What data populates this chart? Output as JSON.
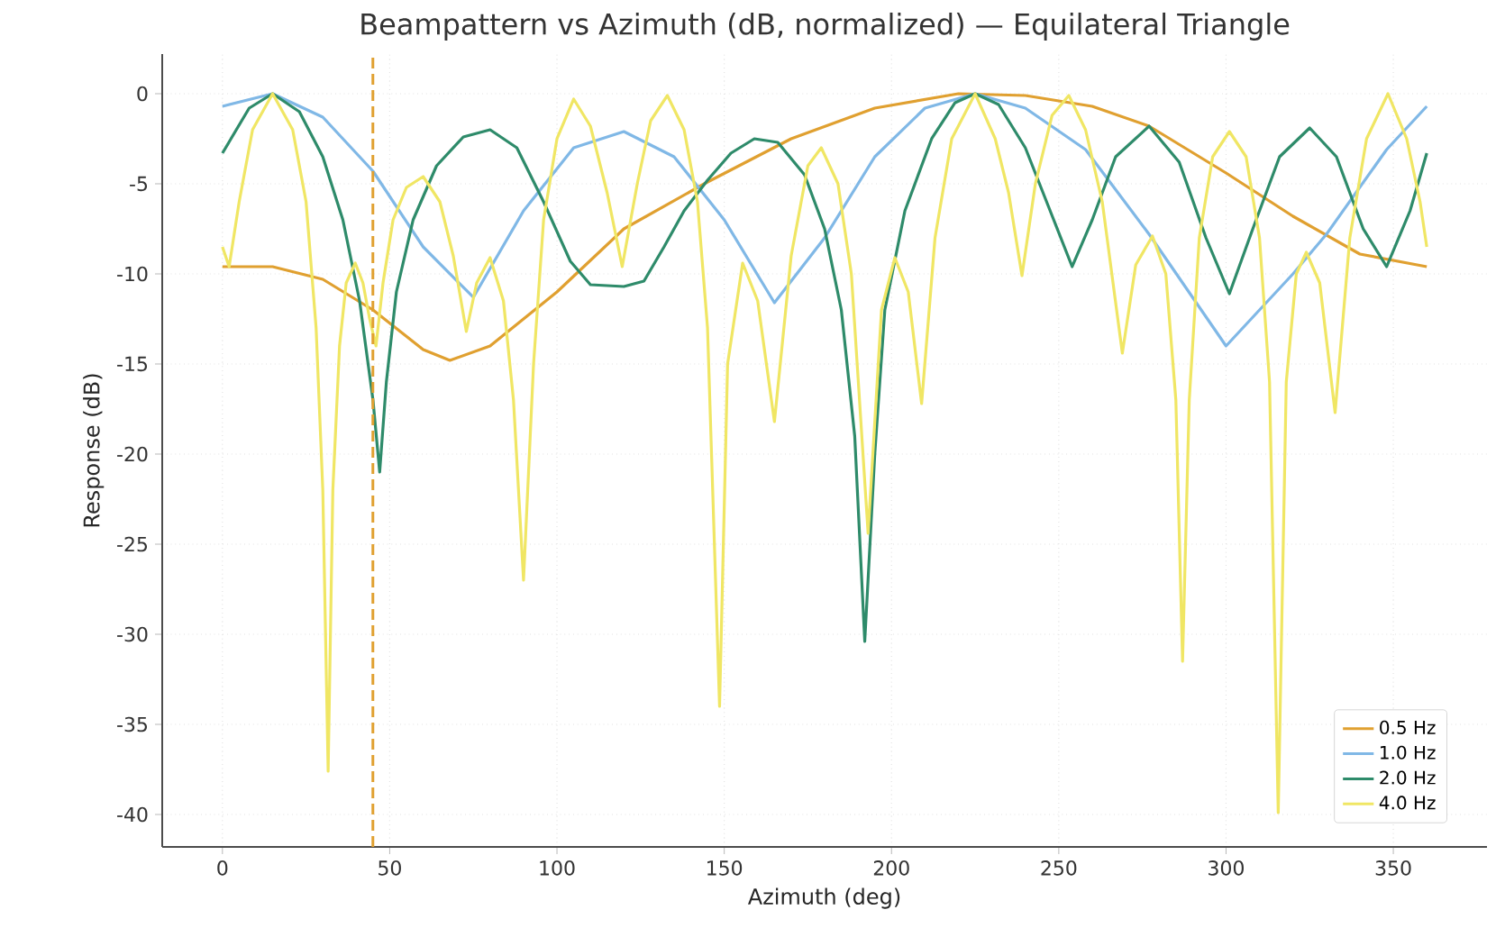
{
  "chart_data": {
    "type": "line",
    "title": "Beampattern vs Azimuth (dB, normalized) — Equilateral Triangle",
    "xlabel": "Azimuth (deg)",
    "ylabel": "Response (dB)",
    "xlim": [
      -18,
      378
    ],
    "ylim": [
      -41.8,
      2.2
    ],
    "xticks": [
      0,
      50,
      100,
      150,
      200,
      250,
      300,
      350
    ],
    "yticks": [
      -40,
      -35,
      -30,
      -25,
      -20,
      -15,
      -10,
      -5,
      0
    ],
    "grid": true,
    "legend": "bottom right",
    "marker": "none",
    "line_style": "solid",
    "ref_lines": [
      {
        "axis": "x",
        "value": 45,
        "color": "#e0a030",
        "line_style": "dashed"
      }
    ],
    "series": [
      {
        "name": "0.5 Hz",
        "color": "#e0a030",
        "x": [
          0,
          15,
          30,
          45,
          60,
          68,
          80,
          100,
          120,
          144,
          170,
          195,
          220,
          240,
          260,
          277,
          300,
          320,
          340,
          360
        ],
        "values": [
          -9.6,
          -9.6,
          -10.3,
          -12,
          -14.2,
          -14.8,
          -14,
          -11,
          -7.5,
          -5,
          -2.5,
          -0.8,
          0,
          -0.1,
          -0.7,
          -1.8,
          -4.4,
          -6.8,
          -8.9,
          -9.6
        ]
      },
      {
        "name": "1.0 Hz",
        "color": "#80b8e6",
        "x": [
          0,
          15,
          30,
          45,
          60,
          75,
          90,
          105,
          120,
          135,
          150,
          165,
          180,
          195,
          210,
          225,
          240,
          258,
          277,
          300,
          320,
          330,
          348,
          360
        ],
        "values": [
          -0.7,
          0,
          -1.3,
          -4.3,
          -8.5,
          -11.3,
          -6.5,
          -3,
          -2.1,
          -3.5,
          -7,
          -11.6,
          -8,
          -3.5,
          -0.8,
          0,
          -0.8,
          -3.1,
          -7.8,
          -14,
          -10,
          -7.8,
          -3.1,
          -0.7
        ]
      },
      {
        "name": "2.0 Hz",
        "color": "#2e8b6a",
        "x": [
          0,
          8,
          15,
          23,
          30,
          36,
          41,
          45,
          47,
          49,
          52,
          57,
          64,
          72,
          80,
          88,
          96,
          104,
          110,
          120,
          126,
          132,
          138,
          145,
          152,
          159,
          166,
          174,
          180,
          185,
          189,
          192,
          195,
          198,
          204,
          212,
          219,
          225,
          232,
          240,
          247,
          254,
          260,
          267,
          277,
          286,
          294,
          301,
          308,
          316,
          325,
          333,
          341,
          348,
          355,
          360
        ],
        "values": [
          -3.3,
          -0.8,
          0,
          -1,
          -3.5,
          -7,
          -11.5,
          -17,
          -21,
          -16,
          -11,
          -7,
          -4,
          -2.4,
          -2,
          -3,
          -6,
          -9.3,
          -10.6,
          -10.7,
          -10.4,
          -8.5,
          -6.5,
          -4.8,
          -3.3,
          -2.5,
          -2.7,
          -4.5,
          -7.5,
          -12,
          -19,
          -30.4,
          -20,
          -12,
          -6.5,
          -2.5,
          -0.5,
          0,
          -0.6,
          -3,
          -6.3,
          -9.6,
          -7,
          -3.5,
          -1.8,
          -3.8,
          -8,
          -11.1,
          -7.5,
          -3.5,
          -1.9,
          -3.5,
          -7.5,
          -9.6,
          -6.5,
          -3.3
        ]
      },
      {
        "name": "4.0 Hz",
        "color": "#f0e664",
        "x": [
          0,
          2,
          5,
          9,
          15,
          21,
          25,
          28,
          30,
          31.6,
          33,
          35,
          37,
          39.7,
          42,
          44,
          45.9,
          48,
          51,
          55,
          60,
          65,
          69,
          72.9,
          76,
          80,
          84,
          87,
          90,
          93,
          96,
          100,
          105,
          110,
          115,
          119.5,
          124,
          128,
          133,
          138,
          142,
          145,
          148.6,
          151,
          155.5,
          160,
          165,
          170,
          175,
          179,
          184,
          188,
          193,
          197,
          201,
          205,
          209,
          213,
          218,
          225,
          231,
          235,
          239,
          243,
          248,
          253,
          258,
          263,
          269,
          273,
          278,
          282,
          285,
          287,
          289,
          292,
          296,
          301,
          306,
          310,
          313,
          315.6,
          318,
          321,
          324,
          328,
          332.6,
          337,
          342,
          348.4,
          354,
          358,
          360
        ],
        "values": [
          -8.5,
          -9.6,
          -6,
          -2,
          0,
          -2,
          -6,
          -13,
          -22,
          -37.6,
          -22,
          -14,
          -10.5,
          -9.4,
          -10.5,
          -12.5,
          -14,
          -10.5,
          -7,
          -5.2,
          -4.6,
          -6,
          -9,
          -13.2,
          -10.5,
          -9.1,
          -11.5,
          -17,
          -27,
          -15,
          -7,
          -2.5,
          -0.3,
          -1.8,
          -5.5,
          -9.6,
          -5,
          -1.5,
          -0.1,
          -2,
          -6,
          -13,
          -34,
          -15,
          -9.4,
          -11.5,
          -18.2,
          -9,
          -4,
          -3,
          -5,
          -10,
          -24.4,
          -12,
          -9.1,
          -11,
          -17.2,
          -8,
          -2.5,
          0,
          -2.5,
          -5.5,
          -10.1,
          -5,
          -1.2,
          -0.1,
          -2,
          -6,
          -14.4,
          -9.5,
          -7.9,
          -10,
          -17,
          -31.5,
          -17,
          -8,
          -3.5,
          -2.1,
          -3.5,
          -8,
          -16,
          -39.9,
          -16,
          -10,
          -8.8,
          -10.5,
          -17.7,
          -8,
          -2.5,
          0,
          -2.5,
          -6,
          -8.5
        ]
      }
    ]
  }
}
